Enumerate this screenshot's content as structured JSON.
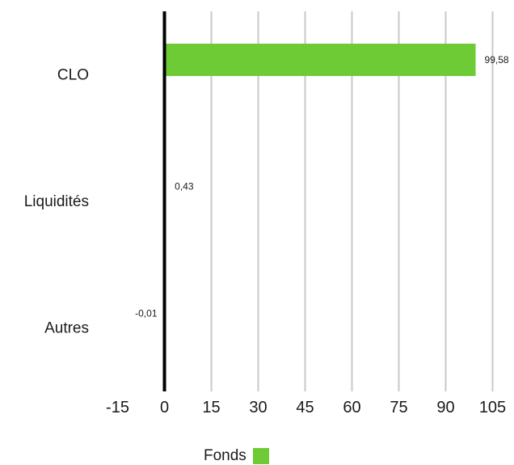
{
  "chart_data": {
    "type": "bar",
    "orientation": "horizontal",
    "categories": [
      "CLO",
      "Liquidités",
      "Autres"
    ],
    "series": [
      {
        "name": "Fonds",
        "values": [
          99.58,
          0.43,
          -0.01
        ],
        "labels": [
          "99,58",
          "0,43",
          "-0,01"
        ],
        "color": "#6fcb35"
      }
    ],
    "xlim": [
      -15,
      105
    ],
    "xticks": [
      -15,
      0,
      15,
      30,
      45,
      60,
      75,
      90,
      105
    ],
    "xtick_labels": [
      "-15",
      "0",
      "15",
      "30",
      "45",
      "60",
      "75",
      "90",
      "105"
    ],
    "grid": true,
    "legend": "bottom-center",
    "title": "",
    "xlabel": "",
    "ylabel": ""
  },
  "legend": {
    "label": "Fonds"
  }
}
